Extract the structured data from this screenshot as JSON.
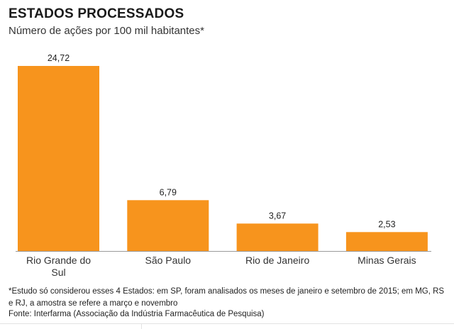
{
  "header": {
    "title": "ESTADOS PROCESSADOS",
    "subtitle": "Número de ações por 100 mil habitantes*"
  },
  "footer": {
    "note": "*Estudo só considerou esses 4 Estados: em SP, foram analisados os meses de janeiro e setembro de 2015; em MG, RS e RJ, a amostra se refere a março e novembro",
    "source": "Fonte: Interfarma (Associação da Indústria Farmacêutica de Pesquisa)"
  },
  "colors": {
    "bar": "#F7941D",
    "baseline": "#9a9a9a",
    "text": "#222222"
  },
  "chart_data": {
    "type": "bar",
    "title": "ESTADOS PROCESSADOS",
    "subtitle": "Número de ações por 100 mil habitantes*",
    "categories": [
      "Rio Grande do Sul",
      "São Paulo",
      "Rio de Janeiro",
      "Minas Gerais"
    ],
    "category_lines": [
      [
        "Rio Grande do",
        "Sul"
      ],
      [
        "São Paulo"
      ],
      [
        "Rio de Janeiro"
      ],
      [
        "Minas Gerais"
      ]
    ],
    "values": [
      24.72,
      6.79,
      3.67,
      2.53
    ],
    "value_labels": [
      "24,72",
      "6,79",
      "3,67",
      "2,53"
    ],
    "ylim": [
      0,
      24.72
    ],
    "grid": false,
    "legend": "none"
  }
}
